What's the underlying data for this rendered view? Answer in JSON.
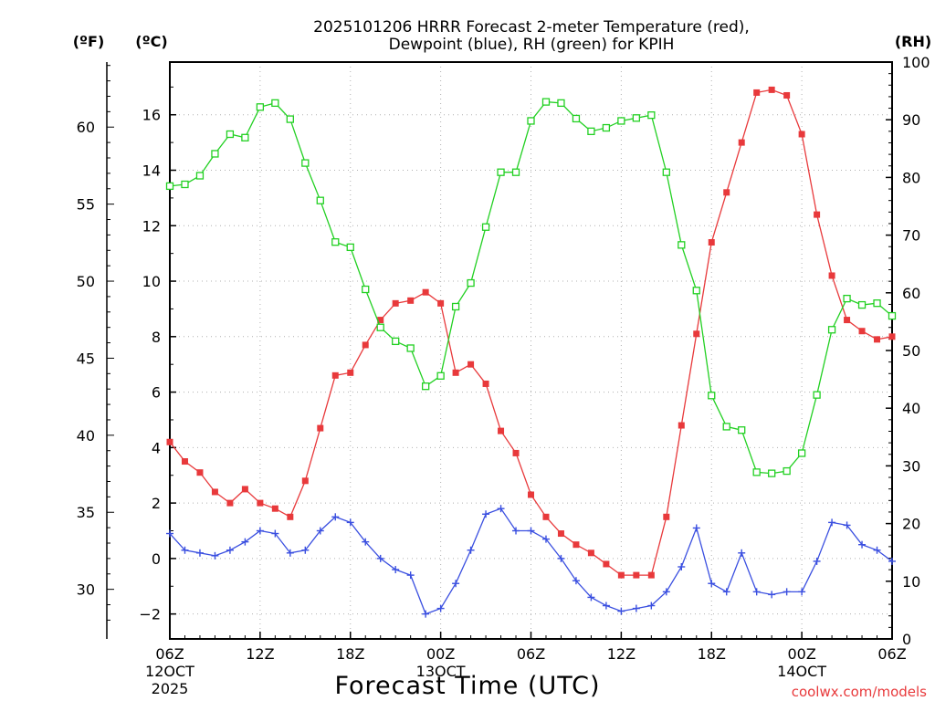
{
  "title_line1": "2025101206 HRRR Forecast 2-meter Temperature (red),",
  "title_line2": "Dewpoint (blue), RH (green) for KPIH",
  "left_unit_f": "(ºF)",
  "left_unit_c": "(ºC)",
  "right_unit": "(RH)",
  "xlabel": "Forecast Time (UTC)",
  "credit": "coolwx.com/models",
  "colors": {
    "temperature": "#e8393b",
    "dewpoint": "#3a4fe0",
    "rh": "#22d022",
    "axis": "#000000",
    "grid": "#b0b0b0"
  },
  "chart_data": {
    "type": "line",
    "title": "2025101206 HRRR Forecast 2-meter Temperature (red), Dewpoint (blue), RH (green) for KPIH",
    "xlabel": "Forecast Time (UTC)",
    "x_hours": [
      0,
      1,
      2,
      3,
      4,
      5,
      6,
      7,
      8,
      9,
      10,
      11,
      12,
      13,
      14,
      15,
      16,
      17,
      18,
      19,
      20,
      21,
      22,
      23,
      24,
      25,
      26,
      27,
      28,
      29,
      30,
      31,
      32,
      33,
      34,
      35,
      36,
      37,
      38,
      39,
      40,
      41,
      42,
      43,
      44,
      45,
      46,
      47,
      48
    ],
    "x_range_hours": [
      0,
      48
    ],
    "x_ticks": [
      {
        "hour": 0,
        "label": "06Z",
        "sub1": "12OCT",
        "sub2": "2025"
      },
      {
        "hour": 6,
        "label": "12Z",
        "sub1": "",
        "sub2": ""
      },
      {
        "hour": 12,
        "label": "18Z",
        "sub1": "",
        "sub2": ""
      },
      {
        "hour": 18,
        "label": "00Z",
        "sub1": "13OCT",
        "sub2": ""
      },
      {
        "hour": 24,
        "label": "06Z",
        "sub1": "",
        "sub2": ""
      },
      {
        "hour": 30,
        "label": "12Z",
        "sub1": "",
        "sub2": ""
      },
      {
        "hour": 36,
        "label": "18Z",
        "sub1": "",
        "sub2": ""
      },
      {
        "hour": 42,
        "label": "00Z",
        "sub1": "14OCT",
        "sub2": ""
      },
      {
        "hour": 48,
        "label": "06Z",
        "sub1": "",
        "sub2": ""
      }
    ],
    "y_left_c": {
      "range": [
        -2.9,
        17.9
      ],
      "ticks": [
        -2,
        0,
        2,
        4,
        6,
        8,
        10,
        12,
        14,
        16
      ],
      "tick_labels": [
        "−2",
        "0",
        "2",
        "4",
        "6",
        "8",
        "10",
        "12",
        "14",
        "16"
      ]
    },
    "y_left_f": {
      "ticks": [
        30,
        35,
        40,
        45,
        50,
        55,
        60
      ],
      "tick_labels": [
        "30",
        "35",
        "40",
        "45",
        "50",
        "55",
        "60"
      ]
    },
    "y_right_rh": {
      "range": [
        0,
        100
      ],
      "ticks": [
        0,
        10,
        20,
        30,
        40,
        50,
        60,
        70,
        80,
        90,
        100
      ],
      "tick_labels": [
        "0",
        "10",
        "20",
        "30",
        "40",
        "50",
        "60",
        "70",
        "80",
        "90",
        "100"
      ]
    },
    "series": [
      {
        "name": "Temperature (red)",
        "axis": "celsius",
        "marker": "filled-square",
        "color": "#e8393b",
        "values": [
          4.2,
          3.5,
          3.1,
          2.4,
          2.0,
          2.5,
          2.0,
          1.8,
          1.5,
          2.8,
          4.7,
          6.6,
          6.7,
          7.7,
          8.6,
          9.2,
          9.3,
          9.6,
          9.2,
          6.7,
          7.0,
          6.3,
          4.6,
          3.8,
          2.3,
          1.5,
          0.9,
          0.5,
          0.2,
          -0.2,
          -0.6,
          -0.6,
          -0.6,
          1.5,
          4.8,
          8.1,
          11.4,
          13.2,
          15.0,
          16.8,
          16.9,
          16.7,
          15.3,
          12.4,
          10.2,
          8.6,
          8.2,
          7.9,
          8.0
        ]
      },
      {
        "name": "Dewpoint (blue)",
        "axis": "celsius",
        "marker": "plus",
        "color": "#3a4fe0",
        "values": [
          0.9,
          0.3,
          0.2,
          0.1,
          0.3,
          0.6,
          1.0,
          0.9,
          0.2,
          0.3,
          1.0,
          1.5,
          1.3,
          0.6,
          0.0,
          -0.4,
          -0.6,
          -2.0,
          -1.8,
          -0.9,
          0.3,
          1.6,
          1.8,
          1.0,
          1.0,
          0.7,
          0.0,
          -0.8,
          -1.4,
          -1.7,
          -1.9,
          -1.8,
          -1.7,
          -1.2,
          -0.3,
          1.1,
          -0.9,
          -1.2,
          0.2,
          -1.2,
          -1.3,
          -1.2,
          -1.2,
          -0.1,
          1.3,
          1.2,
          0.5,
          0.3,
          -0.1
        ]
      },
      {
        "name": "RH (green)",
        "axis": "rh",
        "marker": "open-square",
        "color": "#22d022",
        "values": [
          78.5,
          78.8,
          80.3,
          84.1,
          87.5,
          86.9,
          92.2,
          92.9,
          90.1,
          82.5,
          76.0,
          68.8,
          67.9,
          60.6,
          54.0,
          51.6,
          50.4,
          43.8,
          45.6,
          57.6,
          61.7,
          71.4,
          80.9,
          80.9,
          89.8,
          93.1,
          92.9,
          90.2,
          88.0,
          88.6,
          89.8,
          90.3,
          90.8,
          80.9,
          68.3,
          60.4,
          42.2,
          36.8,
          36.2,
          28.9,
          28.7,
          29.1,
          32.2,
          42.3,
          53.6,
          59.0,
          57.9,
          58.2,
          56.0
        ]
      }
    ]
  }
}
